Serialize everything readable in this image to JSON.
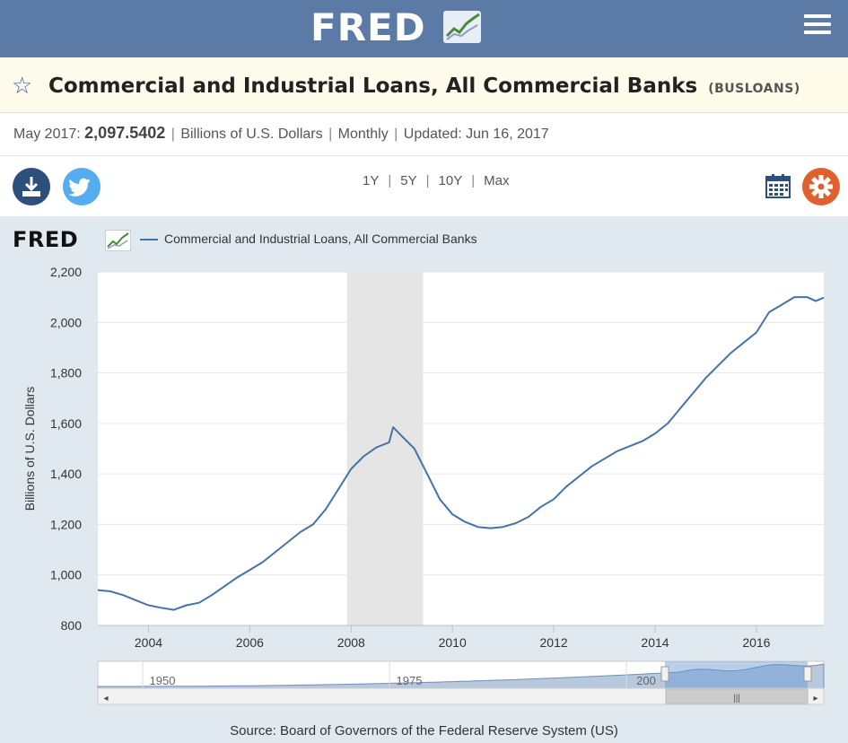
{
  "header": {
    "logo_text": "FRED",
    "menu_icon": "hamburger-menu-icon"
  },
  "series": {
    "title": "Commercial and Industrial Loans, All Commercial Banks",
    "id": "(BUSLOANS)",
    "date_label": "May 2017:",
    "value": "2,097.5402",
    "units": "Billions of U.S. Dollars",
    "frequency": "Monthly",
    "updated_label": "Updated:",
    "updated": "Jun 16, 2017"
  },
  "toolbar": {
    "ranges": [
      "1Y",
      "5Y",
      "10Y",
      "Max"
    ],
    "download_icon": "download-icon",
    "twitter_icon": "twitter-icon",
    "calendar_icon": "calendar-icon",
    "settings_icon": "gear-icon"
  },
  "colors": {
    "header_bg": "#5b7aa5",
    "series_line": "#4572a7",
    "recession_shade": "#e5e5e5",
    "chart_bg": "#e1e9f0"
  },
  "chart_data": {
    "type": "line",
    "legend": "Commercial and Industrial Loans, All Commercial Banks",
    "legend_position": "top-left",
    "ylabel": "Billions of U.S. Dollars",
    "ylim": [
      800,
      2200
    ],
    "yticks": [
      "800",
      "1,000",
      "1,200",
      "1,400",
      "1,600",
      "1,800",
      "2,000",
      "2,200"
    ],
    "xticks": [
      "2004",
      "2006",
      "2008",
      "2010",
      "2012",
      "2014",
      "2016"
    ],
    "xlim": [
      2003.0,
      2017.33
    ],
    "grid": true,
    "recession_shading": [
      [
        2007.92,
        2009.42
      ]
    ],
    "series": [
      {
        "name": "Commercial and Industrial Loans, All Commercial Banks",
        "x": [
          2003.0,
          2003.25,
          2003.5,
          2003.75,
          2004.0,
          2004.25,
          2004.5,
          2004.75,
          2005.0,
          2005.25,
          2005.5,
          2005.75,
          2006.0,
          2006.25,
          2006.5,
          2006.75,
          2007.0,
          2007.25,
          2007.5,
          2007.75,
          2008.0,
          2008.25,
          2008.5,
          2008.75,
          2008.83,
          2009.0,
          2009.25,
          2009.5,
          2009.75,
          2010.0,
          2010.25,
          2010.5,
          2010.75,
          2011.0,
          2011.25,
          2011.5,
          2011.75,
          2012.0,
          2012.25,
          2012.5,
          2012.75,
          2013.0,
          2013.25,
          2013.5,
          2013.75,
          2014.0,
          2014.25,
          2014.5,
          2014.75,
          2015.0,
          2015.25,
          2015.5,
          2015.75,
          2016.0,
          2016.25,
          2016.5,
          2016.75,
          2017.0,
          2017.17,
          2017.33
        ],
        "values": [
          940,
          935,
          920,
          900,
          880,
          870,
          862,
          880,
          890,
          920,
          955,
          990,
          1020,
          1050,
          1090,
          1130,
          1170,
          1200,
          1260,
          1340,
          1420,
          1470,
          1505,
          1525,
          1585,
          1550,
          1500,
          1400,
          1300,
          1240,
          1210,
          1190,
          1185,
          1190,
          1205,
          1230,
          1270,
          1300,
          1350,
          1390,
          1430,
          1460,
          1490,
          1510,
          1530,
          1560,
          1600,
          1660,
          1720,
          1780,
          1830,
          1880,
          1920,
          1960,
          2040,
          2070,
          2100,
          2100,
          2085,
          2098
        ]
      }
    ]
  },
  "navigator": {
    "labels": [
      "1950",
      "1975",
      "200"
    ]
  },
  "footer": {
    "source": "Source: Board of Governors of the Federal Reserve System (US)"
  }
}
